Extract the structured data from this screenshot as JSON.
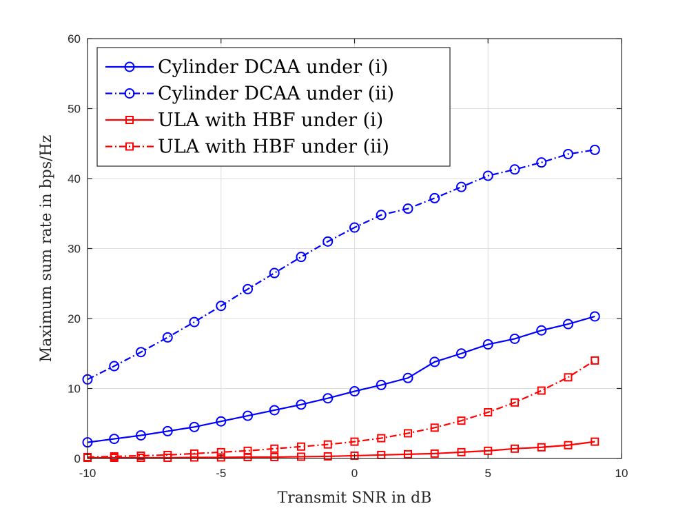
{
  "chart_data": {
    "type": "line",
    "xlabel": "Transmit SNR in dB",
    "ylabel": "Maximum sum rate in bps/Hz",
    "xlim": [
      -10,
      10
    ],
    "ylim": [
      0,
      60
    ],
    "xticks": [
      -10,
      -5,
      0,
      5,
      10
    ],
    "yticks": [
      0,
      10,
      20,
      30,
      40,
      50,
      60
    ],
    "grid": true,
    "legend_position": "top-left",
    "x": [
      -10,
      -9,
      -8,
      -7,
      -6,
      -5,
      -4,
      -3,
      -2,
      -1,
      0,
      1,
      2,
      3,
      4,
      5,
      6,
      7,
      8,
      9
    ],
    "series": [
      {
        "name": "Cylinder DCAA under (i)",
        "color": "#0000ff",
        "line_style": "solid",
        "marker": "circle",
        "values": [
          2.3,
          2.8,
          3.3,
          3.9,
          4.5,
          5.3,
          6.1,
          6.9,
          7.7,
          8.6,
          9.6,
          10.5,
          11.5,
          13.8,
          15.0,
          16.3,
          17.1,
          18.3,
          19.2,
          20.3
        ]
      },
      {
        "name": "Cylinder DCAA under (ii)",
        "color": "#0000ff",
        "line_style": "dashdot",
        "marker": "circle",
        "values": [
          11.3,
          13.2,
          15.2,
          17.3,
          19.5,
          21.8,
          24.2,
          26.5,
          28.8,
          31.0,
          33.0,
          34.8,
          35.7,
          37.2,
          38.8,
          40.4,
          41.3,
          42.3,
          43.5,
          44.1
        ]
      },
      {
        "name": "ULA with HBF under (i)",
        "color": "#ff0000",
        "line_style": "solid",
        "marker": "square",
        "values": [
          0.1,
          0.1,
          0.1,
          0.1,
          0.15,
          0.15,
          0.2,
          0.2,
          0.25,
          0.3,
          0.4,
          0.5,
          0.6,
          0.7,
          0.9,
          1.1,
          1.4,
          1.6,
          1.9,
          2.4
        ]
      },
      {
        "name": "ULA with HBF under (ii)",
        "color": "#ff0000",
        "line_style": "dashdot",
        "marker": "square",
        "values": [
          0.2,
          0.3,
          0.4,
          0.5,
          0.7,
          0.9,
          1.1,
          1.4,
          1.7,
          2.0,
          2.4,
          2.9,
          3.6,
          4.4,
          5.4,
          6.6,
          8.0,
          9.7,
          11.6,
          14.0
        ]
      }
    ]
  }
}
